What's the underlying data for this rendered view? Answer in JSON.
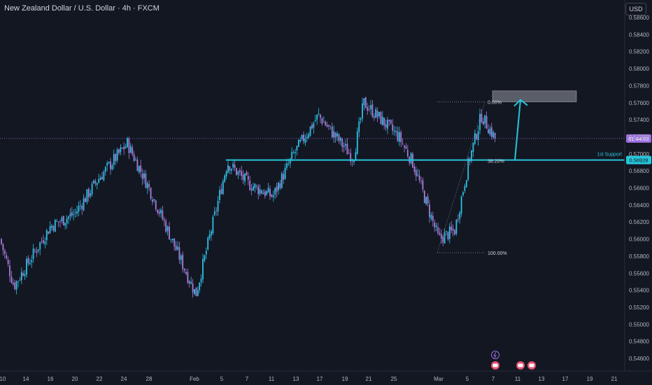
{
  "header": {
    "title": "New Zealand Dollar / U.S. Dollar · 4h · FXCM",
    "currency": "USD"
  },
  "price_tags": {
    "current_price": "01:44:03",
    "support_price": "0.56928"
  },
  "annotations": {
    "support_label": "1st Support",
    "fib_0": "0.00%",
    "fib_38": "38.20%",
    "fib_100": "100.00%"
  },
  "colors": {
    "up": "#2ec1e6",
    "down": "#a77ddb",
    "support": "#26c6da",
    "current_tag": "#9c6fe0",
    "background": "#131722"
  },
  "events": {
    "lightning": "lightning-icon",
    "calendar": "calendar-event-icon"
  },
  "chart_data": {
    "type": "candlestick",
    "title": "New Zealand Dollar / U.S. Dollar · 4h · FXCM",
    "y_axis": {
      "unit": "USD",
      "ylim": [
        0.5448,
        0.5874
      ],
      "ticks": [
        "0.58600",
        "0.58400",
        "0.58200",
        "0.58000",
        "0.57800",
        "0.57600",
        "0.57400",
        "0.57200",
        "0.57000",
        "0.56800",
        "0.56600",
        "0.56400",
        "0.56200",
        "0.56000",
        "0.55800",
        "0.55600",
        "0.55400",
        "0.55200",
        "0.55000",
        "0.54800",
        "0.54600"
      ]
    },
    "x_axis": {
      "ticks": [
        "10",
        "14",
        "16",
        "20",
        "22",
        "24",
        "28",
        "Feb",
        "5",
        "7",
        "11",
        "13",
        "17",
        "19",
        "21",
        "25",
        "Mar",
        "5",
        "7",
        "11",
        "13",
        "17",
        "19",
        "21"
      ]
    },
    "price_path": [
      {
        "label": "Jan 10",
        "close": 0.56
      },
      {
        "label": "Jan 13",
        "close": 0.5545
      },
      {
        "label": "Jan 16",
        "close": 0.5615
      },
      {
        "label": "Jan 20",
        "close": 0.563
      },
      {
        "label": "Jan 22",
        "close": 0.567
      },
      {
        "label": "Jan 24",
        "close": 0.5712
      },
      {
        "label": "Jan 28",
        "close": 0.566
      },
      {
        "label": "Feb 3",
        "close": 0.5535
      },
      {
        "label": "Feb 5",
        "close": 0.569
      },
      {
        "label": "Feb 7",
        "close": 0.5665
      },
      {
        "label": "Feb 11",
        "close": 0.565
      },
      {
        "label": "Feb 13",
        "close": 0.57
      },
      {
        "label": "Feb 14",
        "close": 0.5745
      },
      {
        "label": "Feb 17",
        "close": 0.571
      },
      {
        "label": "Feb 19",
        "close": 0.5695
      },
      {
        "label": "Feb 21",
        "close": 0.576
      },
      {
        "label": "Feb 25",
        "close": 0.572
      },
      {
        "label": "Feb 27",
        "close": 0.569
      },
      {
        "label": "Mar 1",
        "close": 0.56
      },
      {
        "label": "Mar 3",
        "close": 0.561
      },
      {
        "label": "Mar 5",
        "close": 0.569
      },
      {
        "label": "Mar 6",
        "close": 0.5745
      },
      {
        "label": "Mar 7",
        "close": 0.5718
      }
    ],
    "current_price": 0.5718,
    "levels": [
      {
        "name": "1st Support",
        "value": 0.56928
      }
    ],
    "fibonacci": [
      {
        "label": "0.00%",
        "value": 0.5761
      },
      {
        "label": "38.20%",
        "value": 0.5692
      },
      {
        "label": "100.00%",
        "value": 0.5584
      }
    ],
    "target_zone": {
      "from": 0.5761,
      "to": 0.5774
    },
    "grid": false
  }
}
